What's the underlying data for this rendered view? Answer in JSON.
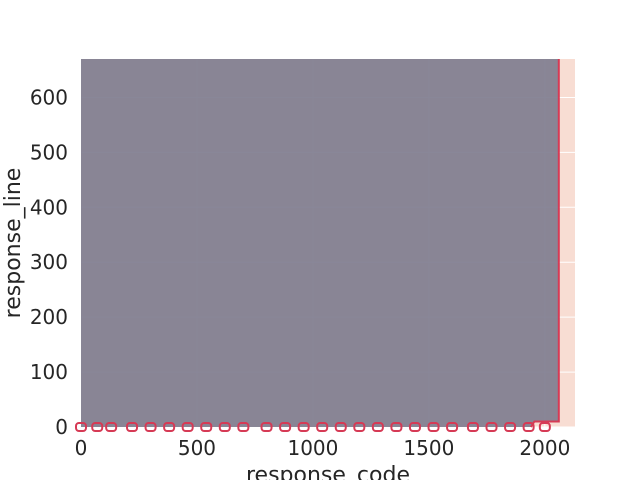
{
  "chart_data": {
    "type": "area",
    "title": "",
    "xlabel": "response_code",
    "ylabel": "response_line",
    "xlim": [
      0,
      2130
    ],
    "ylim": [
      0,
      670
    ],
    "grid": true,
    "x_ticks": [
      0,
      500,
      1000,
      1500,
      2000
    ],
    "y_ticks": [
      0,
      100,
      200,
      300,
      400,
      500,
      600
    ],
    "colors": {
      "plot_background": "#f8ddd3",
      "region_fill": "#7f7d8f",
      "boundary_line": "#d63a55",
      "grid": "#ffffff"
    },
    "region": {
      "name": "",
      "boundary": [
        {
          "x": 0,
          "y": 670
        },
        {
          "x": 0,
          "y": 0
        },
        {
          "x": 1940,
          "y": 0
        },
        {
          "x": 1955,
          "y": 10
        },
        {
          "x": 2060,
          "y": 10
        },
        {
          "x": 2060,
          "y": 670
        }
      ]
    },
    "markers": {
      "series": "",
      "x": [
        0,
        70,
        130,
        220,
        300,
        380,
        460,
        540,
        620,
        700,
        800,
        880,
        960,
        1040,
        1120,
        1200,
        1280,
        1360,
        1440,
        1520,
        1600,
        1690,
        1770,
        1850,
        1930,
        2000
      ],
      "y": [
        0,
        0,
        0,
        0,
        0,
        0,
        0,
        0,
        0,
        0,
        0,
        0,
        0,
        0,
        0,
        0,
        0,
        0,
        0,
        0,
        0,
        0,
        0,
        0,
        0,
        0
      ]
    }
  }
}
